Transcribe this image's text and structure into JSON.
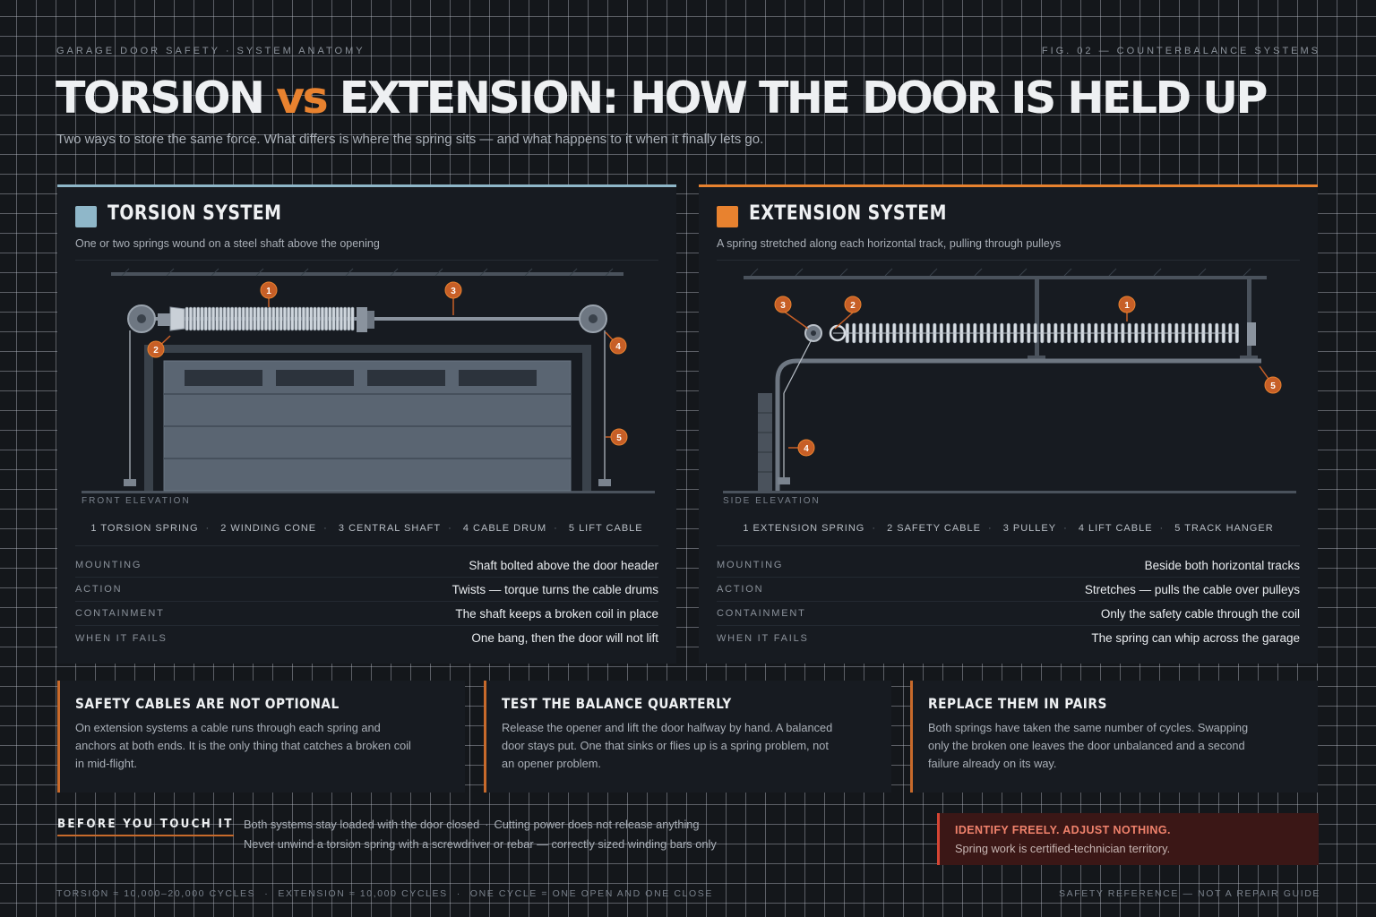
{
  "header": {
    "eyebrow_left": "GARAGE DOOR SAFETY · SYSTEM ANATOMY",
    "eyebrow_right": "FIG. 02 — COUNTERBALANCE SYSTEMS",
    "title_part1": "TORSION",
    "title_vs": "vs",
    "title_part2": "EXTENSION: HOW THE DOOR IS HELD UP",
    "subtitle": "Two ways to store the same force. What differs is where the spring sits — and what happens to it when it finally lets go."
  },
  "colors": {
    "torsion_accent": "#8fb7c9",
    "extension_accent": "#e8822f",
    "callout": "#c75f27",
    "warning": "#d44534"
  },
  "torsion": {
    "title": "TORSION SYSTEM",
    "subtitle": "One or two springs wound on a steel shaft above the opening",
    "view": "FRONT ELEVATION",
    "callouts": [
      "1",
      "2",
      "3",
      "4",
      "5"
    ],
    "legend": [
      "1 TORSION SPRING",
      "2 WINDING CONE",
      "3 CENTRAL SHAFT",
      "4 CABLE DRUM",
      "5 LIFT CABLE"
    ],
    "specs": [
      {
        "label": "MOUNTING",
        "value": "Shaft bolted above the door header"
      },
      {
        "label": "ACTION",
        "value": "Twists — torque turns the cable drums"
      },
      {
        "label": "CONTAINMENT",
        "value": "The shaft keeps a broken coil in place"
      },
      {
        "label": "WHEN IT FAILS",
        "value": "One bang, then the door will not lift"
      }
    ]
  },
  "extension": {
    "title": "EXTENSION SYSTEM",
    "subtitle": "A spring stretched along each horizontal track, pulling through pulleys",
    "view": "SIDE ELEVATION",
    "callouts": [
      "1",
      "2",
      "3",
      "4",
      "5"
    ],
    "legend": [
      "1 EXTENSION SPRING",
      "2 SAFETY CABLE",
      "3 PULLEY",
      "4 LIFT CABLE",
      "5 TRACK HANGER"
    ],
    "specs": [
      {
        "label": "MOUNTING",
        "value": "Beside both horizontal tracks"
      },
      {
        "label": "ACTION",
        "value": "Stretches — pulls the cable over pulleys"
      },
      {
        "label": "CONTAINMENT",
        "value": "Only the safety cable through the coil"
      },
      {
        "label": "WHEN IT FAILS",
        "value": "The spring can whip across the garage"
      }
    ]
  },
  "cards": [
    {
      "title": "SAFETY CABLES ARE NOT OPTIONAL",
      "body": "On extension systems a cable runs through each spring and anchors at both ends. It is the only thing that catches a broken coil in mid-flight."
    },
    {
      "title": "TEST THE BALANCE QUARTERLY",
      "body": "Release the opener and lift the door halfway by hand. A balanced door stays put. One that sinks or flies up is a spring problem, not an opener problem."
    },
    {
      "title": "REPLACE THEM IN PAIRS",
      "body": "Both springs have taken the same number of cycles. Swapping only the broken one leaves the door unbalanced and a second failure already on its way."
    }
  ],
  "bottom": {
    "label": "BEFORE YOU TOUCH IT",
    "line1_a": "Both systems stay loaded with the door closed",
    "line1_b": "Cutting power does not release anything",
    "line2": "Never unwind a torsion spring with a screwdriver or rebar — correctly sized winding bars only",
    "warning_title": "IDENTIFY FREELY. ADJUST NOTHING.",
    "warning_body": "Spring work is certified-technician territory."
  },
  "footer": {
    "item1": "TORSION ≈ 10,000–20,000 CYCLES",
    "item2": "EXTENSION ≈ 10,000 CYCLES",
    "item3": "ONE CYCLE = ONE OPEN AND ONE CLOSE",
    "right": "SAFETY REFERENCE — NOT A REPAIR GUIDE"
  }
}
